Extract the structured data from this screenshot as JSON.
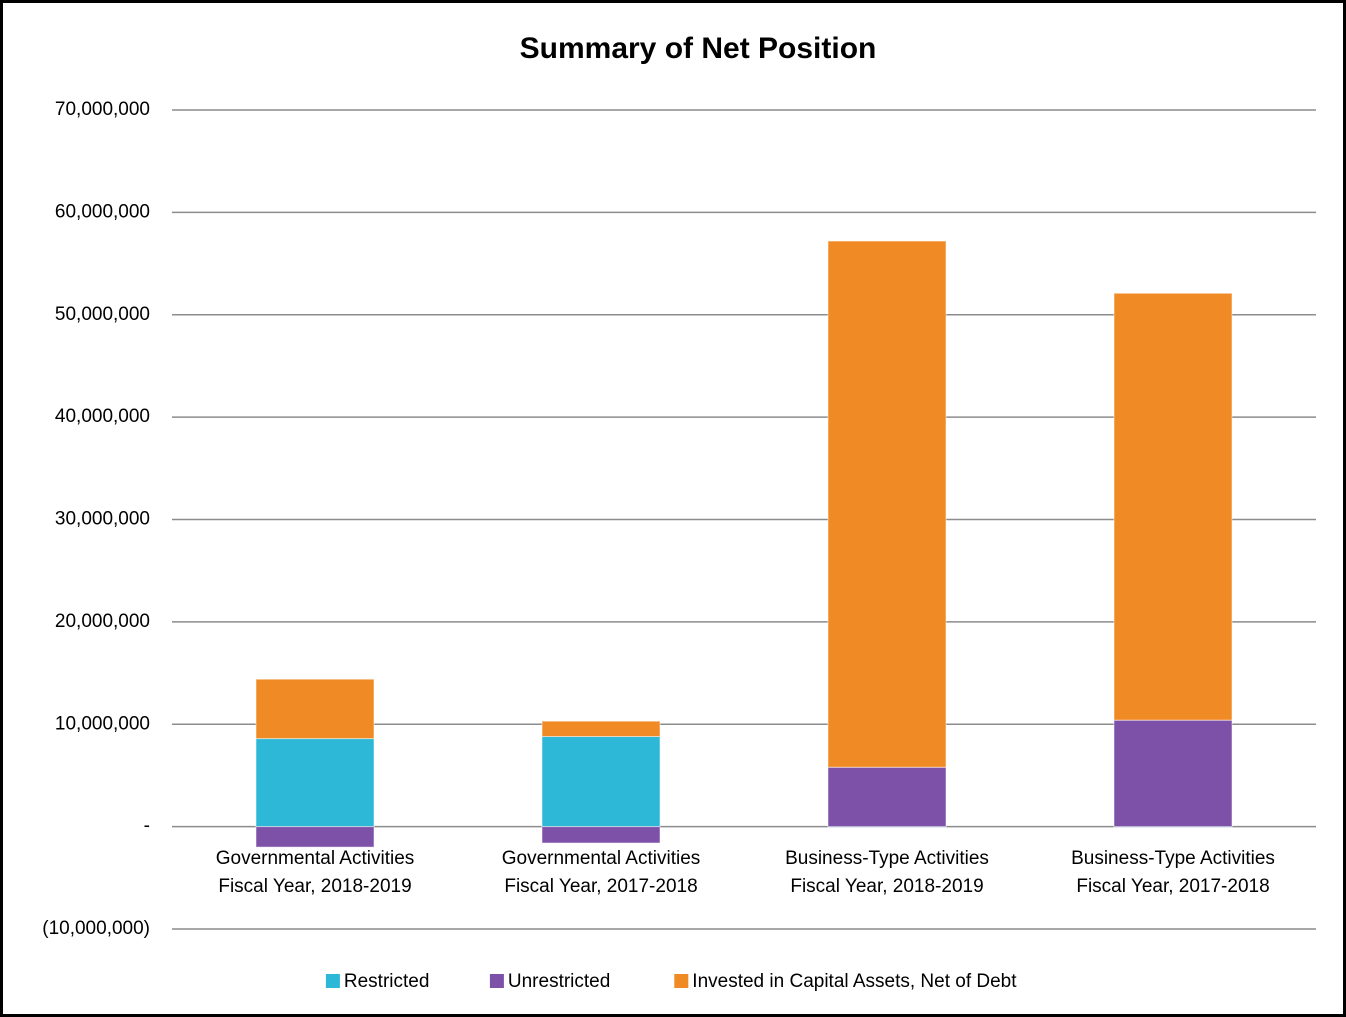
{
  "chart_data": {
    "type": "stacked_bar",
    "title": "Summary of Net Position",
    "categories": [
      [
        "Governmental Activities",
        "Fiscal Year, 2018-2019"
      ],
      [
        "Governmental Activities",
        "Fiscal Year, 2017-2018"
      ],
      [
        "Business-Type Activities",
        "Fiscal Year, 2018-2019"
      ],
      [
        "Business-Type Activities",
        "Fiscal Year, 2017-2018"
      ]
    ],
    "series": [
      {
        "name": "Restricted",
        "color": "#2cb8d6",
        "values": [
          8600000,
          8800000,
          0,
          0
        ]
      },
      {
        "name": "Unrestricted",
        "color": "#7e51a8",
        "values": [
          -2000000,
          -1600000,
          5800000,
          10400000
        ]
      },
      {
        "name": "Invested in Capital Assets, Net of Debt",
        "color": "#f08a24",
        "values": [
          5800000,
          1500000,
          51400000,
          41700000
        ]
      }
    ],
    "ylim": [
      -10000000,
      70000000
    ],
    "yticks": [
      {
        "value": -10000000,
        "label": "(10,000,000)"
      },
      {
        "value": 0,
        "label": "-"
      },
      {
        "value": 10000000,
        "label": "10,000,000"
      },
      {
        "value": 20000000,
        "label": "20,000,000"
      },
      {
        "value": 30000000,
        "label": "30,000,000"
      },
      {
        "value": 40000000,
        "label": "40,000,000"
      },
      {
        "value": 50000000,
        "label": "50,000,000"
      },
      {
        "value": 60000000,
        "label": "60,000,000"
      },
      {
        "value": 70000000,
        "label": "70,000,000"
      }
    ],
    "grid": true,
    "legend": "bottom"
  }
}
